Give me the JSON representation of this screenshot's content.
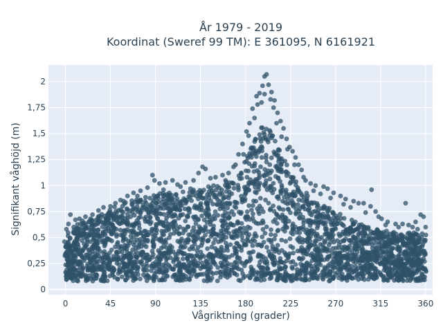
{
  "chart_data": {
    "type": "scatter",
    "title_line1": "År 1979 - 2019",
    "title_line2": "Koordinat (Sweref 99 TM): E 361095, N 6161921",
    "xlabel": "Vågriktning (grader)",
    "ylabel": "Signifikant våghöjd (m)",
    "xlim": [
      -17,
      367
    ],
    "ylim": [
      -0.05,
      2.16
    ],
    "x_ticks": [
      0,
      45,
      90,
      135,
      180,
      225,
      270,
      315,
      360
    ],
    "x_tick_labels": [
      "0",
      "45",
      "90",
      "135",
      "180",
      "225",
      "270",
      "315",
      "360"
    ],
    "y_ticks": [
      0,
      0.25,
      0.5,
      0.75,
      1,
      1.25,
      1.5,
      1.75,
      2
    ],
    "y_tick_labels": [
      "0",
      "0,25",
      "0,5",
      "0,75",
      "1",
      "1,25",
      "1,5",
      "1,75",
      "2"
    ],
    "grid": true,
    "marker_color": "#2f5168",
    "plot_background": "#e5ecf6",
    "envelope": {
      "x": [
        0,
        10,
        20,
        30,
        45,
        60,
        75,
        90,
        105,
        120,
        135,
        150,
        165,
        175,
        185,
        195,
        200,
        205,
        215,
        225,
        235,
        250,
        270,
        290,
        310,
        330,
        345,
        360
      ],
      "upper": [
        0.55,
        0.62,
        0.65,
        0.7,
        0.78,
        0.84,
        0.88,
        0.92,
        0.94,
        0.96,
        0.98,
        1.0,
        1.05,
        1.15,
        1.35,
        1.55,
        1.6,
        1.55,
        1.35,
        1.12,
        0.98,
        0.85,
        0.75,
        0.65,
        0.58,
        0.55,
        0.55,
        0.55
      ],
      "lower": 0.08
    },
    "outliers": [
      [
        199,
        2.05
      ],
      [
        201,
        2.07
      ],
      [
        197,
        1.96
      ],
      [
        203,
        1.97
      ],
      [
        194,
        1.89
      ],
      [
        206,
        1.9
      ],
      [
        191,
        1.86
      ],
      [
        209,
        1.82
      ],
      [
        205,
        1.83
      ],
      [
        196,
        1.8
      ],
      [
        212,
        1.7
      ],
      [
        187,
        1.74
      ],
      [
        215,
        1.62
      ],
      [
        184,
        1.6
      ],
      [
        218,
        1.55
      ],
      [
        181,
        1.52
      ],
      [
        221,
        1.45
      ],
      [
        177,
        1.4
      ],
      [
        224,
        1.37
      ],
      [
        227,
        1.33
      ],
      [
        173,
        1.3
      ],
      [
        230,
        1.27
      ],
      [
        233,
        1.2
      ],
      [
        168,
        1.18
      ],
      [
        236,
        1.15
      ],
      [
        240,
        1.05
      ],
      [
        245,
        1.02
      ],
      [
        250,
        1.0
      ],
      [
        258,
        0.99
      ],
      [
        262,
        0.97
      ],
      [
        268,
        0.93
      ],
      [
        275,
        0.9
      ],
      [
        280,
        0.87
      ],
      [
        288,
        0.85
      ],
      [
        293,
        0.83
      ],
      [
        298,
        0.83
      ],
      [
        305,
        0.8
      ],
      [
        310,
        0.75
      ],
      [
        316,
        0.68
      ],
      [
        322,
        0.65
      ],
      [
        330,
        0.63
      ],
      [
        337,
        0.63
      ],
      [
        343,
        0.62
      ],
      [
        350,
        0.65
      ],
      [
        355,
        0.72
      ],
      [
        358,
        0.7
      ],
      [
        306,
        0.96
      ],
      [
        313,
        0.7
      ],
      [
        87,
        1.1
      ],
      [
        89,
        1.05
      ],
      [
        94,
        1.02
      ],
      [
        100,
        1.03
      ],
      [
        107,
        1.05
      ],
      [
        112,
        1.01
      ],
      [
        120,
        1.03
      ],
      [
        128,
        1.05
      ],
      [
        133,
        1.12
      ],
      [
        137,
        1.18
      ],
      [
        140,
        1.16
      ],
      [
        145,
        1.07
      ],
      [
        150,
        1.08
      ],
      [
        157,
        1.1
      ],
      [
        163,
        1.12
      ],
      [
        82,
        0.98
      ],
      [
        75,
        0.95
      ],
      [
        68,
        0.93
      ],
      [
        62,
        0.9
      ],
      [
        55,
        0.86
      ],
      [
        50,
        0.83
      ],
      [
        45,
        0.8
      ],
      [
        38,
        0.79
      ],
      [
        33,
        0.76
      ],
      [
        27,
        0.72
      ],
      [
        20,
        0.7
      ],
      [
        14,
        0.68
      ],
      [
        10,
        0.67
      ],
      [
        5,
        0.72
      ],
      [
        3,
        0.63
      ],
      [
        1,
        0.58
      ],
      [
        -1,
        0.46
      ],
      [
        17,
        0.66
      ],
      [
        25,
        0.68
      ],
      [
        42,
        0.72
      ],
      [
        58,
        0.85
      ],
      [
        72,
        0.9
      ],
      [
        98,
        0.96
      ],
      [
        115,
        0.99
      ],
      [
        125,
        0.97
      ],
      [
        148,
        1.0
      ],
      [
        160,
        1.05
      ],
      [
        170,
        1.2
      ],
      [
        178,
        1.3
      ],
      [
        183,
        1.48
      ],
      [
        189,
        1.65
      ],
      [
        192,
        1.78
      ],
      [
        199,
        1.88
      ],
      [
        208,
        1.75
      ],
      [
        211,
        1.6
      ],
      [
        216,
        1.47
      ],
      [
        222,
        1.35
      ],
      [
        229,
        1.2
      ],
      [
        238,
        1.08
      ],
      [
        248,
        0.95
      ],
      [
        255,
        0.92
      ],
      [
        265,
        0.88
      ],
      [
        278,
        0.82
      ],
      [
        285,
        0.79
      ],
      [
        300,
        0.74
      ],
      [
        320,
        0.62
      ],
      [
        333,
        0.6
      ],
      [
        347,
        0.6
      ],
      [
        340,
        0.83
      ],
      [
        352,
        0.58
      ],
      [
        360,
        0.6
      ]
    ],
    "fill_count": 2600
  }
}
